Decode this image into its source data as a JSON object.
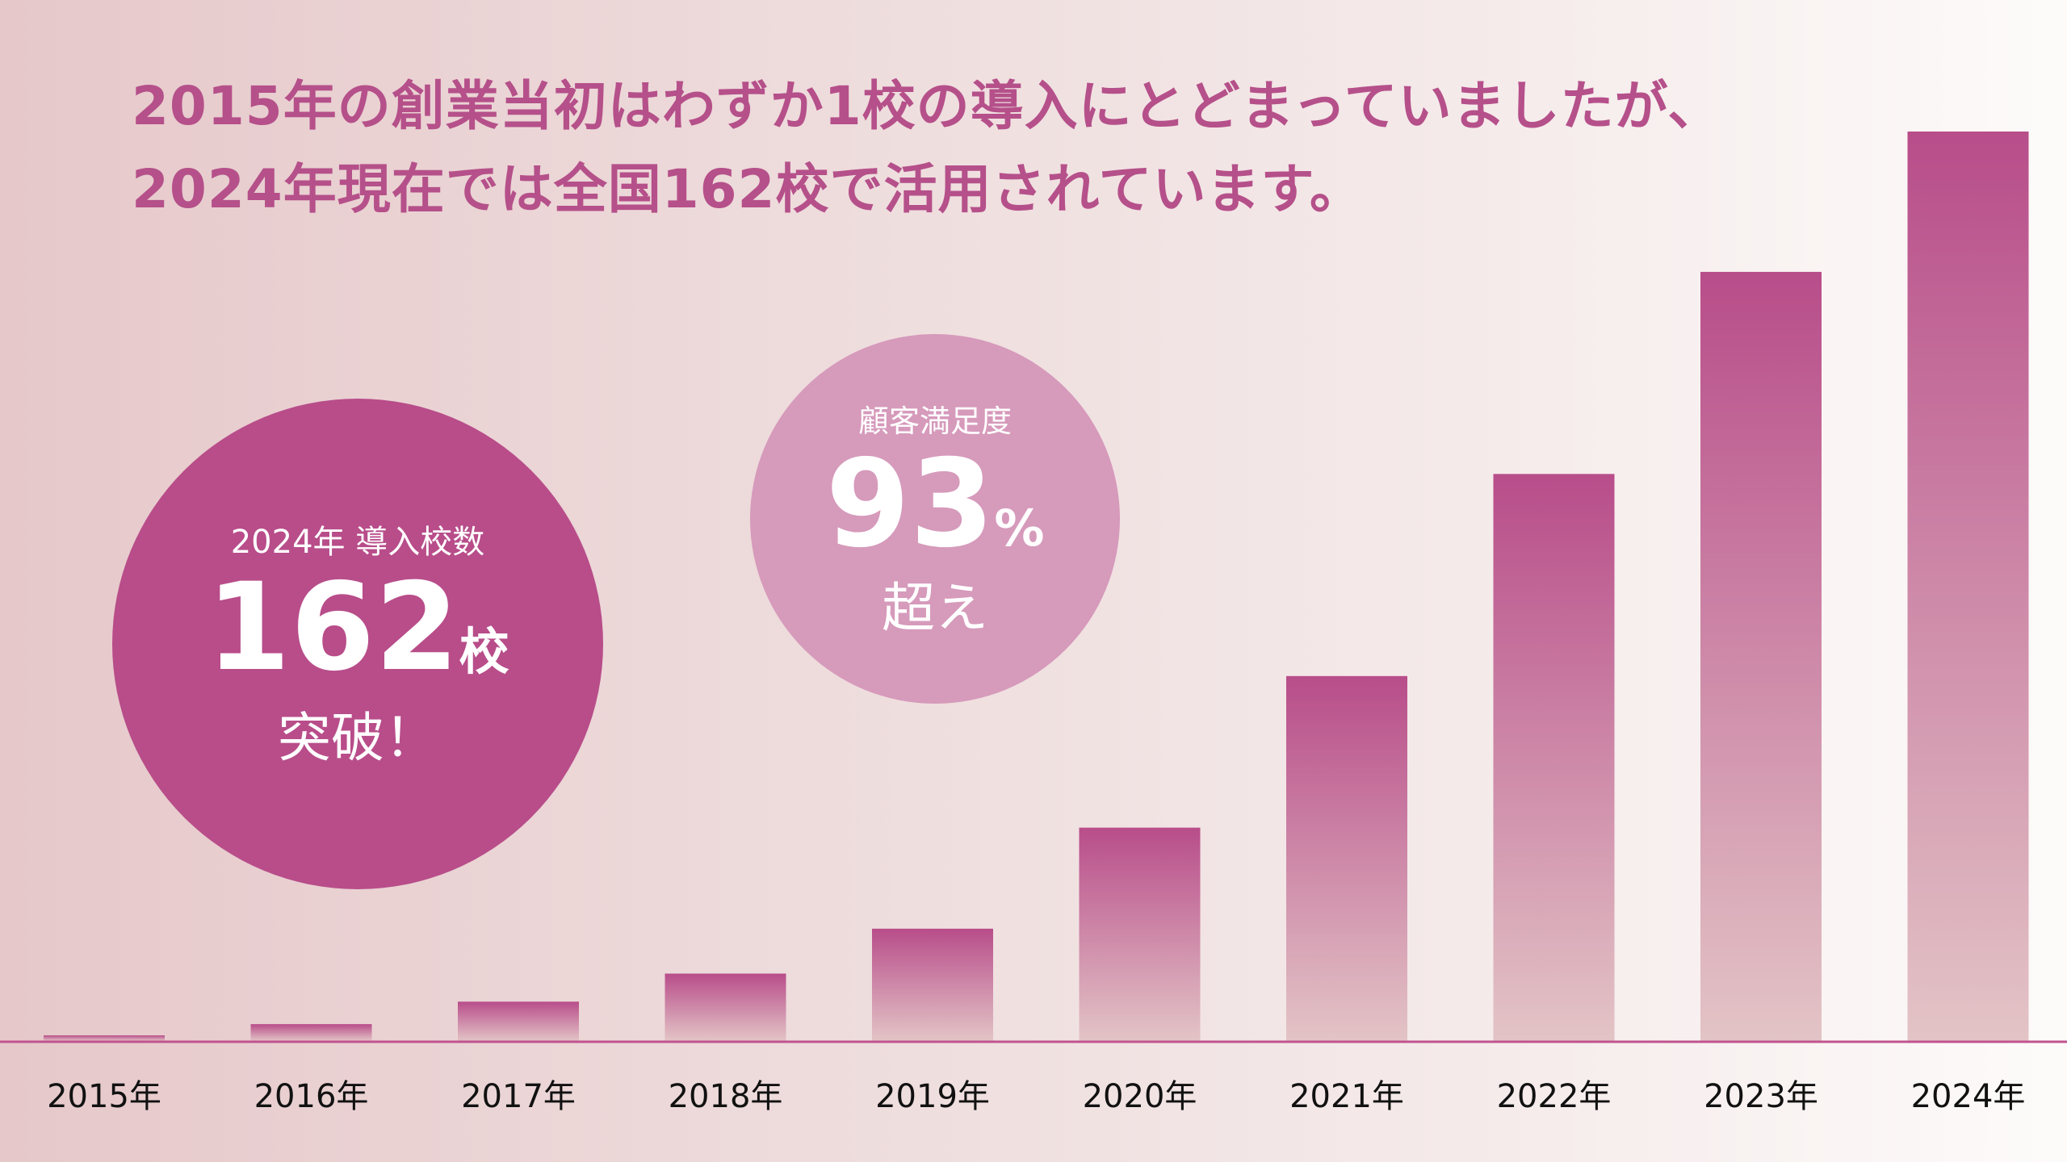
{
  "headline": {
    "line1": "2015年の創業当初はわずか1校の導入にとどまっていましたが、",
    "line2": "2024年現在では全国162校で活用されています。"
  },
  "callouts": {
    "schools": {
      "label": "2024年 導入校数",
      "value": "162",
      "unit": "校",
      "suffix": "突破！",
      "color": "#b84d8a"
    },
    "satisfaction": {
      "label": "顧客満足度",
      "value": "93",
      "unit": "%",
      "suffix": "超え",
      "color": "#d69abb"
    }
  },
  "chart_data": {
    "type": "bar",
    "categories": [
      "2015年",
      "2016年",
      "2017年",
      "2018年",
      "2019年",
      "2020年",
      "2021年",
      "2022年",
      "2023年",
      "2024年"
    ],
    "values": [
      1,
      3,
      7,
      12,
      20,
      38,
      65,
      101,
      137,
      162
    ],
    "title": "",
    "xlabel": "",
    "ylabel": "",
    "ylim": [
      0,
      162
    ],
    "grid": false,
    "bar_color_top": "#b84d8a",
    "bar_color_bottom": "#e3c4c6",
    "axis_color": "#c0548f"
  }
}
